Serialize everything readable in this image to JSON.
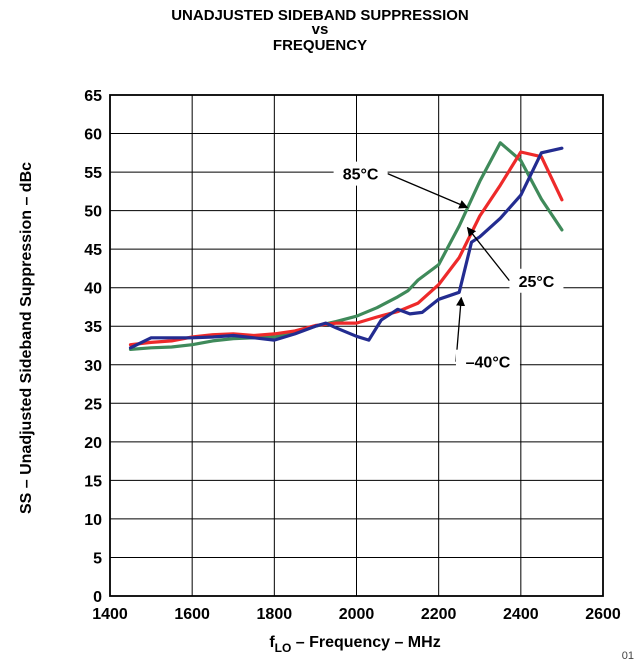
{
  "title": {
    "line1": "UNADJUSTED SIDEBAND SUPPRESSION",
    "line2": "vs",
    "line3": "FREQUENCY"
  },
  "corner_text": "01",
  "chart_data": {
    "type": "line",
    "title": "UNADJUSTED SIDEBAND SUPPRESSION vs FREQUENCY",
    "xlabel_main": "f",
    "xlabel_sub": "LO",
    "xlabel_rest": " – Frequency – MHz",
    "ylabel": "SS – Unadjusted Sideband Suppression – dBc",
    "xlim": [
      1400,
      2600
    ],
    "ylim": [
      0,
      65
    ],
    "xticks": [
      1400,
      1600,
      1800,
      2000,
      2200,
      2400,
      2600
    ],
    "yticks": [
      0,
      5,
      10,
      15,
      20,
      25,
      30,
      35,
      40,
      45,
      50,
      55,
      60,
      65
    ],
    "grid": true,
    "series": [
      {
        "name": "85°C",
        "color": "#3f8a5a",
        "points": [
          [
            1450,
            32.0
          ],
          [
            1500,
            32.2
          ],
          [
            1550,
            32.3
          ],
          [
            1600,
            32.6
          ],
          [
            1650,
            33.1
          ],
          [
            1700,
            33.4
          ],
          [
            1750,
            33.5
          ],
          [
            1800,
            33.6
          ],
          [
            1850,
            34.2
          ],
          [
            1900,
            35.0
          ],
          [
            1950,
            35.6
          ],
          [
            2000,
            36.3
          ],
          [
            2050,
            37.4
          ],
          [
            2100,
            38.8
          ],
          [
            2125,
            39.6
          ],
          [
            2150,
            41.0
          ],
          [
            2200,
            43.0
          ],
          [
            2250,
            48.0
          ],
          [
            2300,
            53.8
          ],
          [
            2350,
            58.8
          ],
          [
            2400,
            56.5
          ],
          [
            2450,
            51.5
          ],
          [
            2500,
            47.5
          ]
        ]
      },
      {
        "name": "25°C",
        "color": "#ee2a2a",
        "points": [
          [
            1450,
            32.6
          ],
          [
            1500,
            32.9
          ],
          [
            1550,
            33.1
          ],
          [
            1600,
            33.6
          ],
          [
            1650,
            33.9
          ],
          [
            1700,
            34.0
          ],
          [
            1750,
            33.8
          ],
          [
            1800,
            34.0
          ],
          [
            1850,
            34.4
          ],
          [
            1900,
            35.1
          ],
          [
            1950,
            35.4
          ],
          [
            2000,
            35.4
          ],
          [
            2050,
            36.2
          ],
          [
            2100,
            36.9
          ],
          [
            2150,
            38.0
          ],
          [
            2200,
            40.4
          ],
          [
            2250,
            43.9
          ],
          [
            2300,
            49.3
          ],
          [
            2350,
            53.3
          ],
          [
            2400,
            57.6
          ],
          [
            2450,
            57.0
          ],
          [
            2500,
            51.4
          ]
        ]
      },
      {
        "name": "–40°C",
        "color": "#232c90",
        "points": [
          [
            1450,
            32.2
          ],
          [
            1500,
            33.5
          ],
          [
            1550,
            33.5
          ],
          [
            1600,
            33.5
          ],
          [
            1650,
            33.6
          ],
          [
            1700,
            33.8
          ],
          [
            1750,
            33.5
          ],
          [
            1800,
            33.2
          ],
          [
            1850,
            34.0
          ],
          [
            1900,
            35.0
          ],
          [
            1925,
            35.4
          ],
          [
            1950,
            34.8
          ],
          [
            2000,
            33.7
          ],
          [
            2030,
            33.2
          ],
          [
            2060,
            35.8
          ],
          [
            2100,
            37.2
          ],
          [
            2130,
            36.6
          ],
          [
            2160,
            36.8
          ],
          [
            2200,
            38.5
          ],
          [
            2250,
            39.4
          ],
          [
            2280,
            45.9
          ],
          [
            2300,
            46.6
          ],
          [
            2350,
            49.0
          ],
          [
            2400,
            52.0
          ],
          [
            2450,
            57.5
          ],
          [
            2500,
            58.1
          ]
        ]
      }
    ],
    "annotations": [
      {
        "text": "85°C",
        "series": "85°C",
        "target_x": 2270,
        "target_y": 50.4,
        "label_x": 2010,
        "label_y": 54.8
      },
      {
        "text": "25°C",
        "series": "25°C",
        "target_x": 2270,
        "target_y": 47.8,
        "label_x": 2438,
        "label_y": 40.9
      },
      {
        "text": "–40°C",
        "series": "–40°C",
        "target_x": 2255,
        "target_y": 38.7,
        "label_x": 2320,
        "label_y": 30.4
      }
    ]
  }
}
